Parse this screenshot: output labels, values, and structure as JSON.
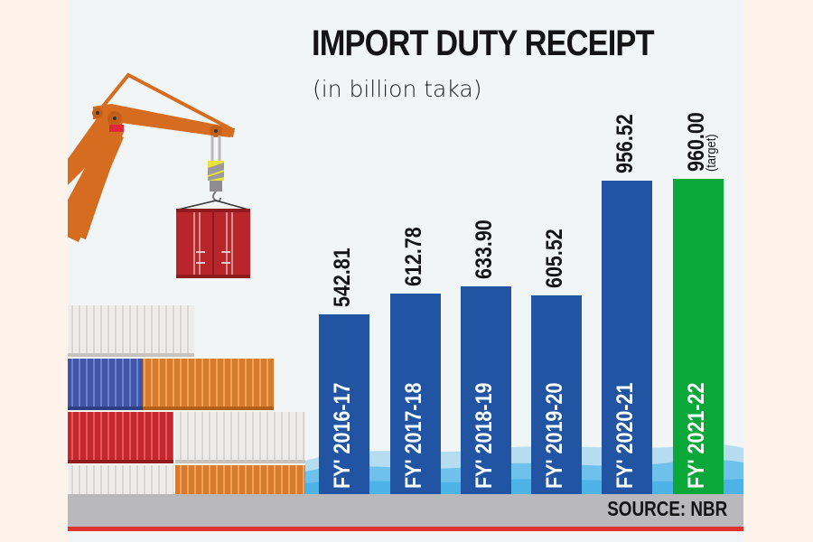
{
  "header": {
    "title": "IMPORT DUTY RECEIPT",
    "subtitle": "(in billion taka)"
  },
  "footer": {
    "source": "SOURCE: NBR"
  },
  "colors": {
    "bar_actual": "#2155a3",
    "bar_target": "#0aa839",
    "background": "#f1f5f6",
    "frame": "#fdf3ea",
    "ground": "#b9b9bb",
    "accent_line": "#e0322e"
  },
  "bars": [
    {
      "label": "FY' 2016-17",
      "value_text": "542.81",
      "note": ""
    },
    {
      "label": "FY' 2017-18",
      "value_text": "612.78",
      "note": ""
    },
    {
      "label": "FY' 2018-19",
      "value_text": "633.90",
      "note": ""
    },
    {
      "label": "FY' 2019-20",
      "value_text": "605.52",
      "note": ""
    },
    {
      "label": "FY' 2020-21",
      "value_text": "956.52",
      "note": ""
    },
    {
      "label": "FY' 2021-22",
      "value_text": "960.00",
      "note": "(target)"
    }
  ],
  "illustration": {
    "icons": [
      "crane-icon",
      "hanging-container-icon",
      "container-stack-icon",
      "water-waves-icon"
    ]
  },
  "chart_data": {
    "type": "bar",
    "title": "IMPORT DUTY RECEIPT",
    "subtitle": "(in billion taka)",
    "categories": [
      "FY' 2016-17",
      "FY' 2017-18",
      "FY' 2018-19",
      "FY' 2019-20",
      "FY' 2020-21",
      "FY' 2021-22"
    ],
    "values": [
      542.81,
      612.78,
      633.9,
      605.52,
      956.52,
      960.0
    ],
    "annotations": [
      {
        "category": "FY' 2021-22",
        "text": "(target)"
      }
    ],
    "bar_colors": [
      "#2155a3",
      "#2155a3",
      "#2155a3",
      "#2155a3",
      "#2155a3",
      "#0aa839"
    ],
    "xlabel": "",
    "ylabel": "billion taka",
    "source": "SOURCE: NBR",
    "grid": false,
    "legend": null,
    "orientation": "vertical",
    "data_labels": "rotated above bars; category labels rotated inside bars"
  }
}
